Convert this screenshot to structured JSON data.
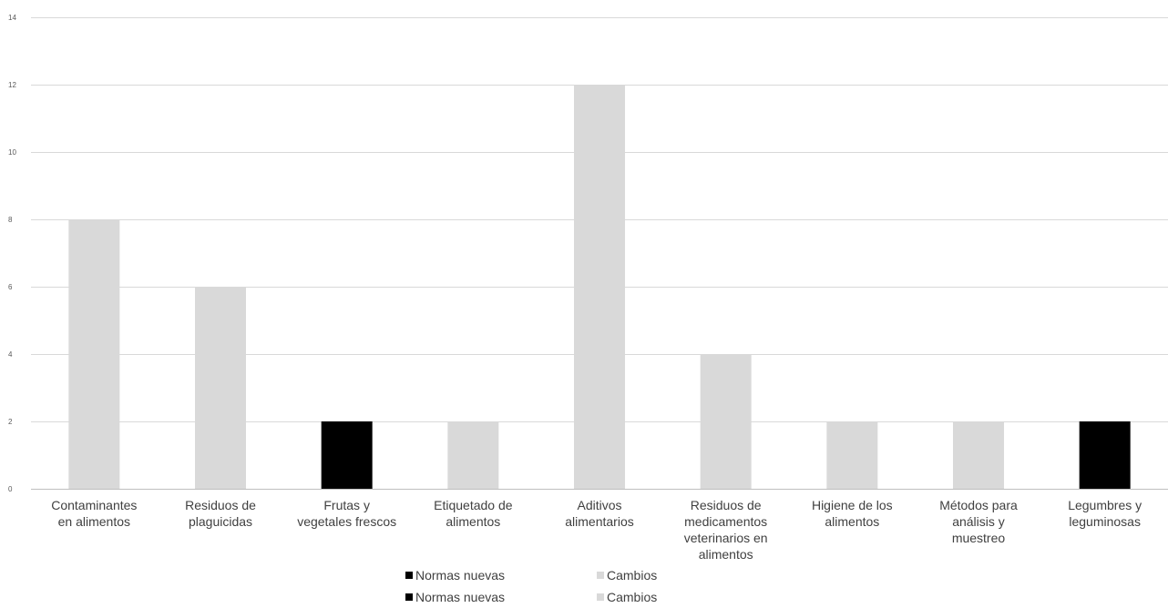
{
  "chart_data": {
    "type": "bar",
    "categories": [
      [
        "Contaminantes",
        "en alimentos"
      ],
      [
        "Residuos de",
        "plaguicidas"
      ],
      [
        "Frutas y",
        "vegetales frescos"
      ],
      [
        "Etiquetado de",
        "alimentos"
      ],
      [
        "Aditivos",
        "alimentarios"
      ],
      [
        "Residuos de",
        "medicamentos",
        "veterinarios en",
        "alimentos"
      ],
      [
        "Higiene de los",
        "alimentos"
      ],
      [
        "Métodos para",
        "análisis y",
        "muestreo"
      ],
      [
        "Legumbres y",
        "leguminosas"
      ]
    ],
    "values": [
      8,
      6,
      2,
      2,
      12,
      4,
      2,
      2,
      2
    ],
    "bar_series": [
      "Cambios",
      "Cambios",
      "Normas nuevas",
      "Cambios",
      "Cambios",
      "Cambios",
      "Cambios",
      "Cambios",
      "Normas nuevas"
    ],
    "series": [
      {
        "name": "Normas nuevas",
        "color": "#000000"
      },
      {
        "name": "Cambios",
        "color": "#d9d9d9"
      }
    ],
    "yticks": [
      "0",
      "2",
      "4",
      "6",
      "8",
      "10",
      "12",
      "14"
    ],
    "ylim": [
      0,
      14
    ],
    "grid": true,
    "gridline_color": "#d9d9d9",
    "legend_placement": "bottom-center",
    "legend_rows": 2
  },
  "legend": {
    "row1": {
      "new_label": "Normas nuevas",
      "changes_label": "Cambios"
    },
    "row2": {
      "new_label": "Normas nuevas",
      "changes_label": "Cambios"
    }
  }
}
